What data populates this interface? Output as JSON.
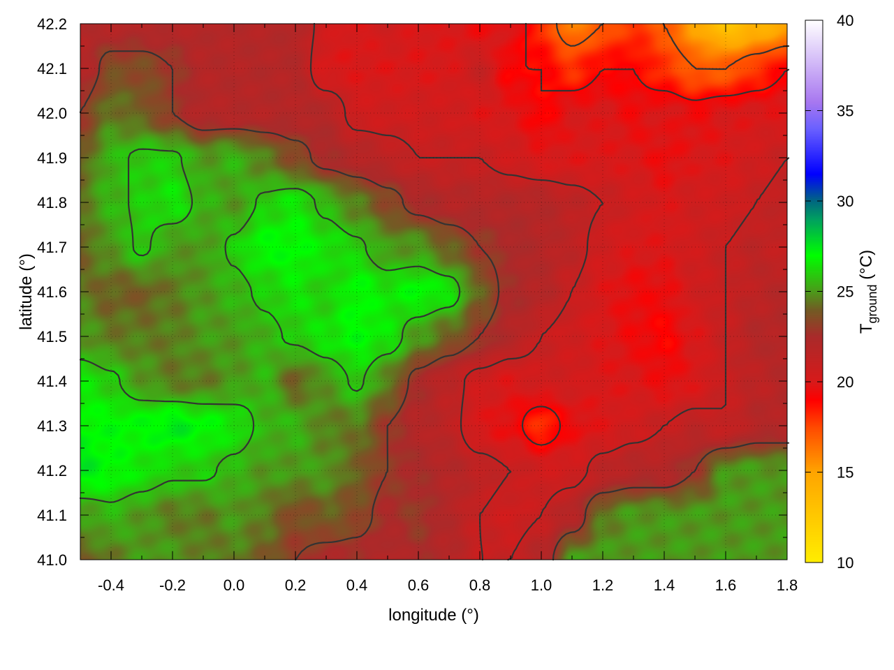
{
  "chart_data": {
    "type": "heatmap",
    "xlabel": "longitude (°)",
    "ylabel": "latitude (°)",
    "colorbar_label": {
      "main": "T",
      "sub": "ground",
      "unit": " (°C)"
    },
    "xlim": [
      -0.5,
      1.8
    ],
    "ylim": [
      41.0,
      42.2
    ],
    "zlim": [
      10,
      40
    ],
    "x_ticks": [
      "-0.4",
      "-0.2",
      "0.0",
      "0.2",
      "0.4",
      "0.6",
      "0.8",
      "1.0",
      "1.2",
      "1.4",
      "1.6",
      "1.8"
    ],
    "y_ticks": [
      "41.0",
      "41.1",
      "41.2",
      "41.3",
      "41.4",
      "41.5",
      "41.6",
      "41.7",
      "41.8",
      "41.9",
      "42.0",
      "42.1",
      "42.2"
    ],
    "z_ticks": [
      "10",
      "15",
      "20",
      "25",
      "30",
      "35",
      "40"
    ],
    "grid": true,
    "contours": true,
    "contour_levels": [
      17,
      19,
      21,
      23,
      25.8
    ],
    "colormap": [
      [
        10,
        "#ffee00"
      ],
      [
        15,
        "#ffa500"
      ],
      [
        17.5,
        "#ff4a00"
      ],
      [
        19,
        "#ff0000"
      ],
      [
        20,
        "#d81a1a"
      ],
      [
        22.5,
        "#aa2a2a"
      ],
      [
        24,
        "#725c24"
      ],
      [
        25,
        "#4c9a1a"
      ],
      [
        27,
        "#00ff00"
      ],
      [
        29,
        "#00a060"
      ],
      [
        30,
        "#006880"
      ],
      [
        31.5,
        "#0000ff"
      ],
      [
        34,
        "#6a60ff"
      ],
      [
        35.5,
        "#a878f0"
      ],
      [
        40,
        "#ffffff"
      ]
    ],
    "lon": [
      -0.5,
      -0.4,
      -0.3,
      -0.2,
      -0.1,
      0.0,
      0.1,
      0.2,
      0.3,
      0.4,
      0.5,
      0.6,
      0.7,
      0.8,
      0.9,
      1.0,
      1.1,
      1.2,
      1.3,
      1.4,
      1.5,
      1.6,
      1.7,
      1.8
    ],
    "lat": [
      42.2,
      42.1,
      42.0,
      41.9,
      41.8,
      41.7,
      41.6,
      41.5,
      41.4,
      41.3,
      41.2,
      41.1,
      41.0
    ],
    "values": [
      [
        22,
        22,
        22,
        22,
        22,
        22,
        22,
        22,
        20.5,
        20,
        20.5,
        20,
        20,
        19.5,
        20,
        18,
        16,
        17,
        18,
        17,
        15,
        13,
        14,
        15
      ],
      [
        22,
        23.5,
        23.5,
        23,
        22,
        22,
        22,
        22,
        20,
        20,
        20,
        20,
        20,
        21,
        19,
        19,
        18,
        19,
        19,
        18,
        17,
        17,
        18,
        19
      ],
      [
        23,
        24.5,
        24,
        23,
        22,
        22,
        22,
        22,
        22,
        20.5,
        20.5,
        20.5,
        20.5,
        20,
        20,
        19,
        20,
        20,
        19.5,
        20,
        19.5,
        20,
        20,
        20
      ],
      [
        24,
        25.5,
        26,
        26,
        25,
        25.5,
        24.5,
        23.5,
        22.5,
        22,
        21.5,
        21,
        21,
        21,
        20.5,
        20,
        20,
        20,
        20,
        19.5,
        20,
        20,
        20.5,
        21
      ],
      [
        24.5,
        25.5,
        26,
        26.5,
        25.5,
        25,
        26,
        26.5,
        25.5,
        24.5,
        23.5,
        22.5,
        22,
        22,
        22,
        22,
        21.5,
        21,
        20.5,
        20,
        20.5,
        20.5,
        21,
        21.5
      ],
      [
        24,
        25,
        26,
        25,
        25,
        26,
        27,
        27,
        26.5,
        26,
        25,
        25,
        24,
        23,
        22.5,
        22,
        21.5,
        20.5,
        20,
        20,
        20.5,
        21,
        21.5,
        21
      ],
      [
        24.5,
        24,
        24,
        24.5,
        25,
        25.5,
        26,
        26.5,
        26,
        27,
        26.5,
        27,
        26.5,
        24,
        22.5,
        22,
        21,
        20,
        19.5,
        19.5,
        20.5,
        21,
        21.5,
        22
      ],
      [
        25,
        24.5,
        24.5,
        24.5,
        25,
        25,
        25.5,
        26,
        26.5,
        27,
        26.5,
        25,
        24,
        23,
        22,
        21,
        20.5,
        20,
        19.5,
        19,
        20,
        21,
        22,
        22
      ],
      [
        26.5,
        26,
        25,
        24.5,
        24.5,
        25,
        25.5,
        24,
        25,
        26,
        24.5,
        22.5,
        21.5,
        20.5,
        20,
        20.5,
        20.5,
        20,
        20,
        19.5,
        20,
        21,
        21.5,
        22
      ],
      [
        27,
        27,
        27,
        27.5,
        27,
        26.5,
        25.5,
        25.5,
        24.5,
        24.5,
        23,
        22,
        21.5,
        20,
        19.5,
        18,
        19.5,
        20,
        20.5,
        21,
        21.5,
        21,
        22,
        22
      ],
      [
        27.5,
        27,
        26.5,
        26,
        26,
        25.5,
        25,
        25,
        25,
        24,
        23,
        22.5,
        22,
        21.5,
        21,
        20.5,
        20.5,
        21.5,
        22,
        22,
        23,
        25,
        25,
        25
      ],
      [
        25,
        25.5,
        25,
        24.5,
        24.5,
        25,
        24.5,
        23.5,
        24,
        23.5,
        22.5,
        23,
        22,
        21,
        20.5,
        21,
        22,
        24.5,
        25,
        25,
        25,
        25,
        25,
        25
      ],
      [
        24,
        24.5,
        25,
        25,
        24.5,
        24.5,
        24,
        23,
        22.5,
        22.5,
        22,
        22.5,
        22,
        21,
        21,
        22,
        25,
        25,
        25,
        25,
        25,
        25,
        25,
        25
      ]
    ]
  }
}
